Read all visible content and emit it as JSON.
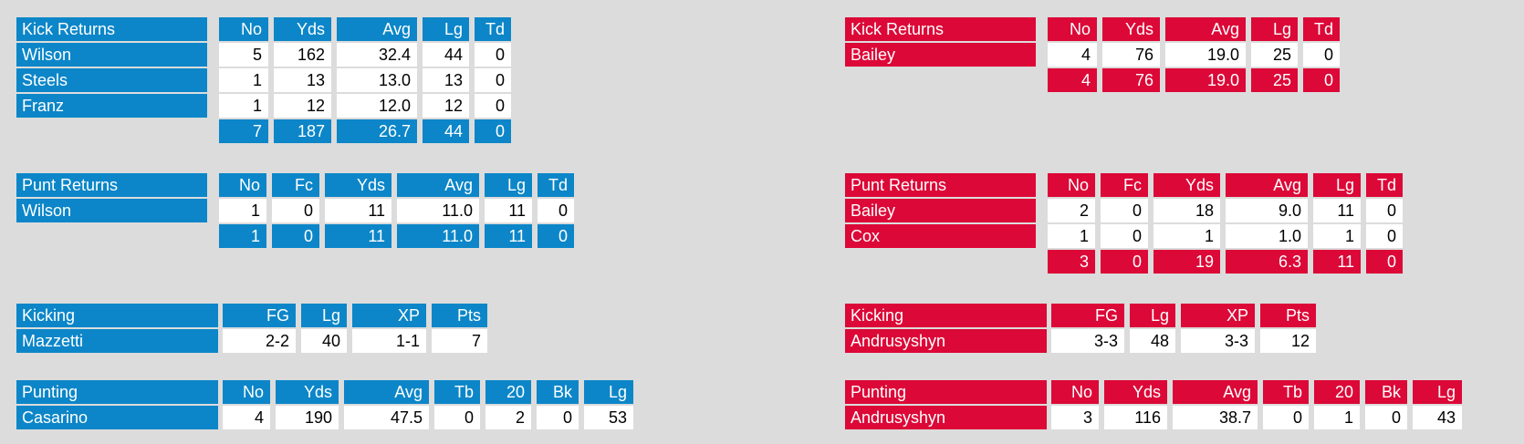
{
  "page": {
    "background_color": "#dcdcdc",
    "data_cell_color": "#ffffff",
    "data_text_color": "#000000",
    "header_text_color": "#ffffff"
  },
  "teams": [
    {
      "side": "left",
      "accent_color": "#0c86c8",
      "tables": [
        {
          "kind": "kick_returns",
          "title": "Kick Returns",
          "columns": [
            "No",
            "Yds",
            "Avg",
            "Lg",
            "Td"
          ],
          "rows": [
            {
              "name": "Wilson",
              "values": [
                "5",
                "162",
                "32.4",
                "44",
                "0"
              ]
            },
            {
              "name": "Steels",
              "values": [
                "1",
                "13",
                "13.0",
                "13",
                "0"
              ]
            },
            {
              "name": "Franz",
              "values": [
                "1",
                "12",
                "12.0",
                "12",
                "0"
              ]
            }
          ],
          "totals": [
            "7",
            "187",
            "26.7",
            "44",
            "0"
          ]
        },
        {
          "kind": "punt_returns",
          "title": "Punt Returns",
          "columns": [
            "No",
            "Fc",
            "Yds",
            "Avg",
            "Lg",
            "Td"
          ],
          "rows": [
            {
              "name": "Wilson",
              "values": [
                "1",
                "0",
                "11",
                "11.0",
                "11",
                "0"
              ]
            }
          ],
          "totals": [
            "1",
            "0",
            "11",
            "11.0",
            "11",
            "0"
          ]
        },
        {
          "kind": "kicking",
          "title": "Kicking",
          "columns": [
            "FG",
            "Lg",
            "XP",
            "Pts"
          ],
          "rows": [
            {
              "name": "Mazzetti",
              "values": [
                "2-2",
                "40",
                "1-1",
                "7"
              ]
            }
          ]
        },
        {
          "kind": "punting",
          "title": "Punting",
          "columns": [
            "No",
            "Yds",
            "Avg",
            "Tb",
            "20",
            "Bk",
            "Lg"
          ],
          "rows": [
            {
              "name": "Casarino",
              "values": [
                "4",
                "190",
                "47.5",
                "0",
                "2",
                "0",
                "53"
              ]
            }
          ]
        }
      ]
    },
    {
      "side": "right",
      "accent_color": "#dc0837",
      "tables": [
        {
          "kind": "kick_returns",
          "title": "Kick Returns",
          "columns": [
            "No",
            "Yds",
            "Avg",
            "Lg",
            "Td"
          ],
          "rows": [
            {
              "name": "Bailey",
              "values": [
                "4",
                "76",
                "19.0",
                "25",
                "0"
              ]
            }
          ],
          "totals": [
            "4",
            "76",
            "19.0",
            "25",
            "0"
          ]
        },
        {
          "kind": "punt_returns",
          "title": "Punt Returns",
          "columns": [
            "No",
            "Fc",
            "Yds",
            "Avg",
            "Lg",
            "Td"
          ],
          "rows": [
            {
              "name": "Bailey",
              "values": [
                "2",
                "0",
                "18",
                "9.0",
                "11",
                "0"
              ]
            },
            {
              "name": "Cox",
              "values": [
                "1",
                "0",
                "1",
                "1.0",
                "1",
                "0"
              ]
            }
          ],
          "totals": [
            "3",
            "0",
            "19",
            "6.3",
            "11",
            "0"
          ]
        },
        {
          "kind": "kicking",
          "title": "Kicking",
          "columns": [
            "FG",
            "Lg",
            "XP",
            "Pts"
          ],
          "rows": [
            {
              "name": "Andrusyshyn",
              "values": [
                "3-3",
                "48",
                "3-3",
                "12"
              ]
            }
          ]
        },
        {
          "kind": "punting",
          "title": "Punting",
          "columns": [
            "No",
            "Yds",
            "Avg",
            "Tb",
            "20",
            "Bk",
            "Lg"
          ],
          "rows": [
            {
              "name": "Andrusyshyn",
              "values": [
                "3",
                "116",
                "38.7",
                "0",
                "1",
                "0",
                "43"
              ]
            }
          ]
        }
      ]
    }
  ]
}
